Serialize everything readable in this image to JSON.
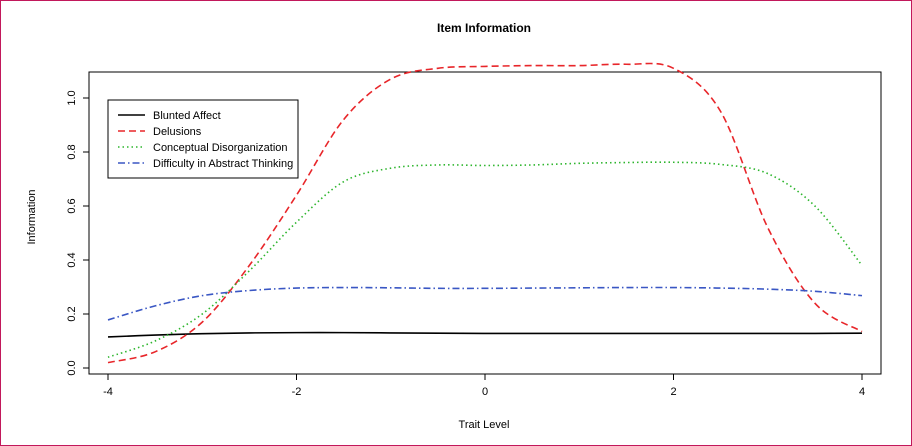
{
  "chart_data": {
    "type": "line",
    "title": "Item Information",
    "xlabel": "Trait Level",
    "ylabel": "Information",
    "xlim": [
      -4,
      4
    ],
    "ylim": [
      0,
      1.12
    ],
    "xticks": [
      -4,
      -2,
      0,
      2,
      4
    ],
    "yticks": [
      0.0,
      0.2,
      0.4,
      0.6,
      0.8,
      1.0
    ],
    "xtick_labels": [
      "-4",
      "-2",
      "0",
      "2",
      "4"
    ],
    "ytick_labels": [
      "0.0",
      "0.2",
      "0.4",
      "0.6",
      "0.8",
      "1.0"
    ],
    "grid": false,
    "legend_position": "top-left",
    "x": [
      -4,
      -3.5,
      -3,
      -2.5,
      -2,
      -1.5,
      -1,
      -0.5,
      0,
      0.5,
      1,
      1.5,
      2,
      2.5,
      3,
      3.5,
      4
    ],
    "series": [
      {
        "name": "Blunted Affect",
        "color": "#000000",
        "dash": "solid",
        "values": [
          0.115,
          0.122,
          0.127,
          0.13,
          0.131,
          0.131,
          0.13,
          0.129,
          0.128,
          0.128,
          0.128,
          0.128,
          0.128,
          0.128,
          0.128,
          0.128,
          0.129
        ]
      },
      {
        "name": "Delusions",
        "color": "#e8262a",
        "dash": "dashed",
        "values": [
          0.02,
          0.06,
          0.17,
          0.38,
          0.64,
          0.92,
          1.07,
          1.11,
          1.117,
          1.12,
          1.12,
          1.125,
          1.11,
          0.95,
          0.52,
          0.24,
          0.135
        ]
      },
      {
        "name": "Conceptual Disorganization",
        "color": "#2db52d",
        "dash": "dotted",
        "values": [
          0.04,
          0.1,
          0.2,
          0.36,
          0.54,
          0.69,
          0.74,
          0.752,
          0.75,
          0.752,
          0.758,
          0.761,
          0.762,
          0.754,
          0.72,
          0.6,
          0.38
        ]
      },
      {
        "name": "Difficulty in Abstract Thinking",
        "color": "#3a57c4",
        "dash": "dashdot",
        "values": [
          0.178,
          0.23,
          0.268,
          0.287,
          0.296,
          0.298,
          0.297,
          0.295,
          0.295,
          0.296,
          0.297,
          0.298,
          0.298,
          0.296,
          0.292,
          0.284,
          0.268
        ]
      }
    ]
  }
}
